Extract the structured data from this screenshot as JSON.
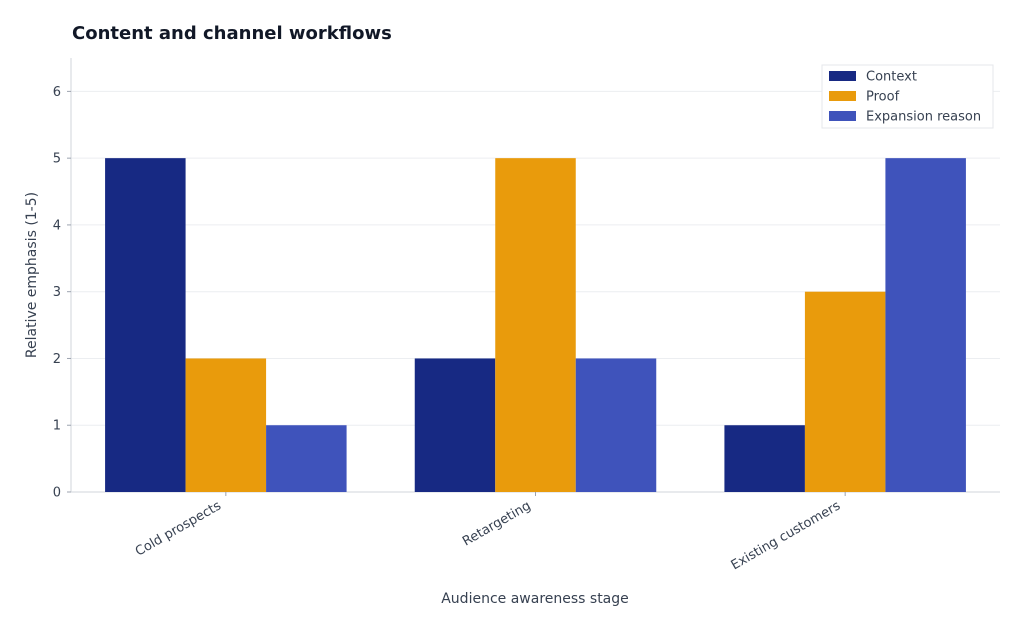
{
  "chart_data": {
    "type": "bar",
    "title": "Content and channel workflows",
    "xlabel": "Audience awareness stage",
    "ylabel": "Relative emphasis (1-5)",
    "categories": [
      "Cold prospects",
      "Retargeting",
      "Existing customers"
    ],
    "ylim": [
      0,
      6.5
    ],
    "yticks": [
      0,
      1,
      2,
      3,
      4,
      5,
      6
    ],
    "grid": true,
    "legend_position": "top-right",
    "series": [
      {
        "name": "Context",
        "color": "#172983",
        "values": [
          5,
          2,
          1
        ]
      },
      {
        "name": "Proof",
        "color": "#E99B0C",
        "values": [
          2,
          5,
          3
        ]
      },
      {
        "name": "Expansion reason",
        "color": "#3F53BB",
        "values": [
          1,
          2,
          5
        ]
      }
    ]
  }
}
